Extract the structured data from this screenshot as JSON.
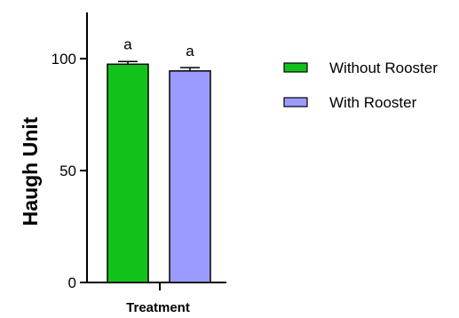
{
  "chart_data": {
    "type": "bar",
    "xlabel": "Treatment",
    "ylabel": "Haugh Unit",
    "ylim": [
      0,
      120
    ],
    "yticks": [
      0,
      50,
      100
    ],
    "legend_position": "right",
    "series": [
      {
        "name": "Without Rooster",
        "value": 97.5,
        "error": 1.2,
        "annotation": "a",
        "color": "#12c21a"
      },
      {
        "name": "With Rooster",
        "value": 94.5,
        "error": 1.5,
        "annotation": "a",
        "color": "#9b9bff"
      }
    ]
  }
}
